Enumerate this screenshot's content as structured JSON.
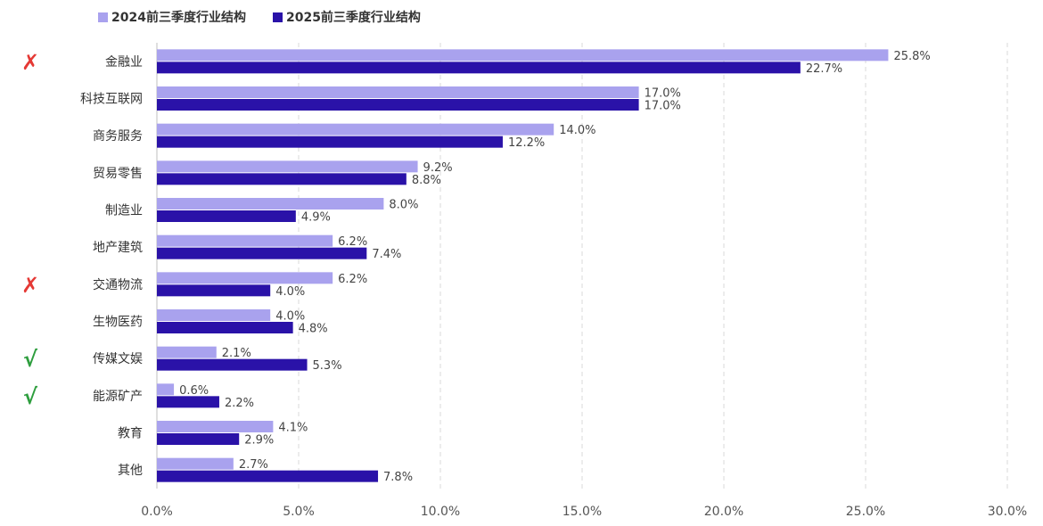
{
  "chart_data": {
    "type": "bar",
    "orientation": "horizontal",
    "categories": [
      "金融业",
      "科技互联网",
      "商务服务",
      "贸易零售",
      "制造业",
      "地产建筑",
      "交通物流",
      "生物医药",
      "传媒文娱",
      "能源矿产",
      "教育",
      "其他"
    ],
    "series": [
      {
        "name": "2024前三季度行业结构",
        "color": "#a9a2ee",
        "values": [
          25.8,
          17.0,
          14.0,
          9.2,
          8.0,
          6.2,
          6.2,
          4.0,
          2.1,
          0.6,
          4.1,
          2.7
        ],
        "labels": [
          "25.8%",
          "17.0%",
          "14.0%",
          "9.2%",
          "8.0%",
          "6.2%",
          "6.2%",
          "4.0%",
          "2.1%",
          "0.6%",
          "4.1%",
          "2.7%"
        ]
      },
      {
        "name": "2025前三季度行业结构",
        "color": "#2a12a8",
        "values": [
          22.7,
          17.0,
          12.2,
          8.8,
          4.9,
          7.4,
          4.0,
          4.8,
          5.3,
          2.2,
          2.9,
          7.8
        ],
        "labels": [
          "22.7%",
          "17.0%",
          "12.2%",
          "8.8%",
          "4.9%",
          "7.4%",
          "4.0%",
          "4.8%",
          "5.3%",
          "2.2%",
          "2.9%",
          "7.8%"
        ]
      }
    ],
    "xlim": [
      0,
      30
    ],
    "x_ticks": [
      "0.0%",
      "5.0%",
      "10.0%",
      "15.0%",
      "20.0%",
      "25.0%",
      "30.0%"
    ],
    "grid": "vertical dashed",
    "legend_position": "top-left",
    "markers": [
      {
        "category": "金融业",
        "symbol": "✗",
        "color": "#e53935"
      },
      {
        "category": "交通物流",
        "symbol": "✗",
        "color": "#e53935"
      },
      {
        "category": "传媒文娱",
        "symbol": "√",
        "color": "#2e9e3e"
      },
      {
        "category": "能源矿产",
        "symbol": "√",
        "color": "#2e9e3e"
      }
    ]
  }
}
